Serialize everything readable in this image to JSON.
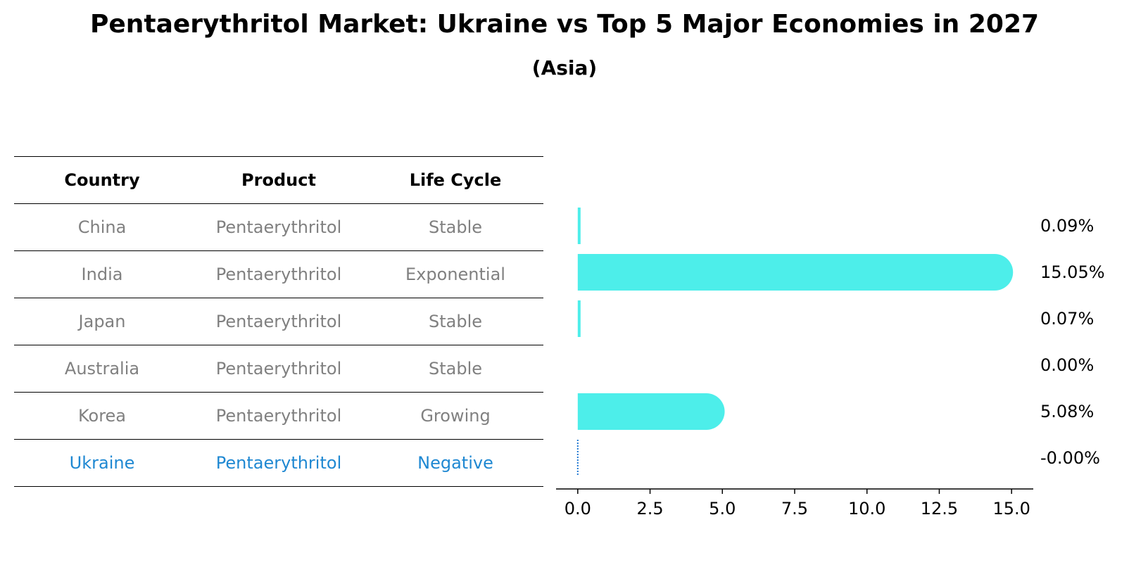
{
  "title": "Pentaerythritol Market: Ukraine vs Top 5 Major Economies in 2027",
  "subtitle": "(Asia)",
  "table": {
    "headers": [
      "Country",
      "Product",
      "Life Cycle"
    ],
    "rows": [
      [
        "China",
        "Pentaerythritol",
        "Stable"
      ],
      [
        "India",
        "Pentaerythritol",
        "Exponential"
      ],
      [
        "Japan",
        "Pentaerythritol",
        "Stable"
      ],
      [
        "Australia",
        "Pentaerythritol",
        "Stable"
      ],
      [
        "Korea",
        "Pentaerythritol",
        "Growing"
      ],
      [
        "Ukraine",
        "Pentaerythritol",
        "Negative"
      ]
    ],
    "highlight_row": "Ukraine"
  },
  "chart_data": {
    "type": "bar",
    "orientation": "horizontal",
    "categories": [
      "China",
      "India",
      "Japan",
      "Australia",
      "Korea",
      "Ukraine"
    ],
    "values": [
      0.09,
      15.05,
      0.07,
      0.0,
      5.08,
      -0.0
    ],
    "value_labels": [
      "0.09%",
      "15.05%",
      "0.07%",
      "0.00%",
      "5.08%",
      "-0.00%"
    ],
    "xlim": [
      -0.75,
      15.75
    ],
    "xticks": [
      0.0,
      2.5,
      5.0,
      7.5,
      10.0,
      12.5,
      15.0
    ],
    "xtick_labels": [
      "0.0",
      "2.5",
      "5.0",
      "7.5",
      "10.0",
      "12.5",
      "15.0"
    ],
    "bar_color": "#4deeea",
    "highlight_color": "#1f77d2",
    "highlight": "Ukraine"
  }
}
